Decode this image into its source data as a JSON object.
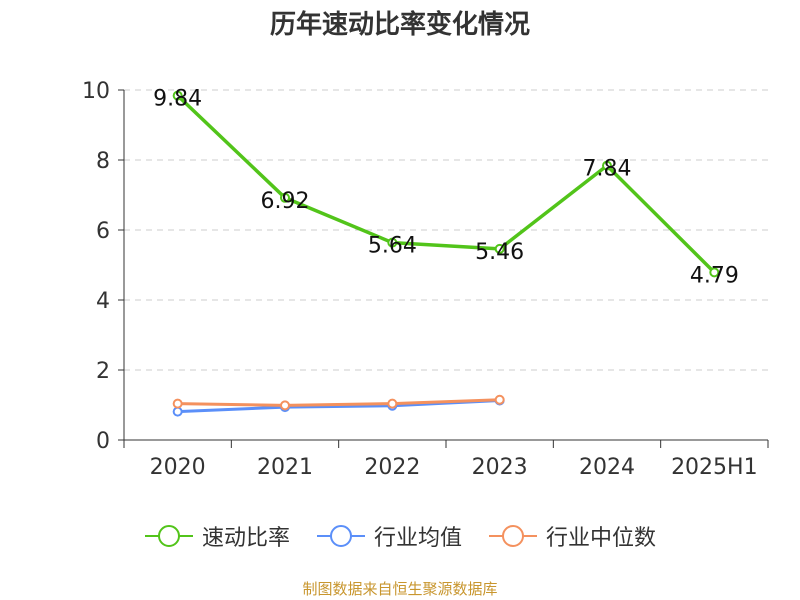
{
  "title": "历年速动比率变化情况",
  "source": "制图数据来自恒生聚源数据库",
  "chart_data": {
    "type": "line",
    "title": "历年速动比率变化情况",
    "categories": [
      "2020",
      "2021",
      "2022",
      "2023",
      "2024",
      "2025H1"
    ],
    "ylim": [
      0,
      10
    ],
    "yticks": [
      0,
      2,
      4,
      6,
      8,
      10
    ],
    "grid": true,
    "legend_position": "bottom",
    "series": [
      {
        "name": "速动比率",
        "color": "#52c41a",
        "values": [
          9.84,
          6.92,
          5.64,
          5.46,
          7.84,
          4.79
        ],
        "labels": [
          "9.84",
          "6.92",
          "5.64",
          "5.46",
          "7.84",
          "4.79"
        ]
      },
      {
        "name": "行业均值",
        "color": "#5b8ff9",
        "values": [
          0.81,
          0.94,
          0.98,
          1.13,
          null,
          null
        ]
      },
      {
        "name": "行业中位数",
        "color": "#f4915e",
        "values": [
          1.04,
          0.99,
          1.04,
          1.15,
          null,
          null
        ]
      }
    ]
  }
}
